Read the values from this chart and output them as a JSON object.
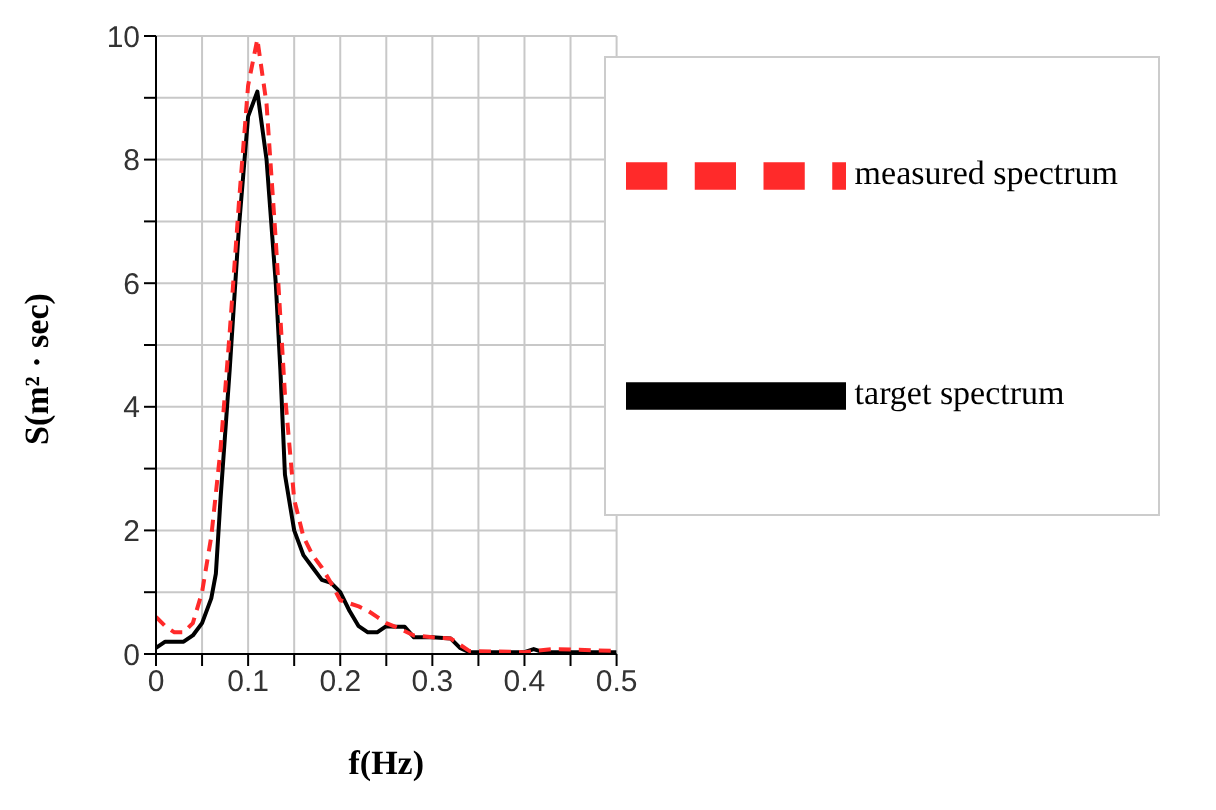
{
  "chart_data": {
    "type": "line",
    "xlabel": "f(Hz)",
    "ylabel": "S(m² · sec)",
    "xlim": [
      0,
      0.5
    ],
    "ylim": [
      0,
      10
    ],
    "xticks": [
      0,
      {
        "value": 0.05,
        "label": null
      },
      0.1,
      {
        "value": 0.15,
        "label": null
      },
      0.2,
      {
        "value": 0.25,
        "label": null
      },
      0.3,
      {
        "value": 0.35,
        "label": null
      },
      0.4,
      {
        "value": 0.45,
        "label": null
      },
      0.5
    ],
    "yticks": [
      0,
      {
        "value": 1,
        "label": null
      },
      2,
      {
        "value": 3,
        "label": null
      },
      4,
      {
        "value": 5,
        "label": null
      },
      6,
      {
        "value": 7,
        "label": null
      },
      8,
      {
        "value": 9,
        "label": null
      },
      10
    ],
    "grid": true,
    "legend": "top right",
    "marker": "none",
    "series": [
      {
        "name": "target spectrum",
        "color": "#000000",
        "line_style": "solid",
        "x": [
          0,
          0.01,
          0.03,
          0.04,
          0.05,
          0.06,
          0.065,
          0.07,
          0.08,
          0.09,
          0.1,
          0.11,
          0.12,
          0.13,
          0.135,
          0.14,
          0.15,
          0.16,
          0.17,
          0.18,
          0.19,
          0.2,
          0.21,
          0.22,
          0.23,
          0.24,
          0.25,
          0.26,
          0.27,
          0.28,
          0.3,
          0.32,
          0.33,
          0.34,
          0.4,
          0.41,
          0.42,
          0.5
        ],
        "values": [
          0.1,
          0.2,
          0.2,
          0.3,
          0.5,
          0.9,
          1.3,
          2.5,
          4.6,
          6.9,
          8.7,
          9.1,
          8.0,
          6.0,
          4.6,
          2.9,
          2.0,
          1.6,
          1.4,
          1.2,
          1.15,
          1.0,
          0.7,
          0.45,
          0.35,
          0.35,
          0.45,
          0.44,
          0.44,
          0.27,
          0.27,
          0.25,
          0.1,
          0.03,
          0.03,
          0.08,
          0.03,
          0.03
        ]
      },
      {
        "name": "measured spectrum",
        "color": "#ff2a2a",
        "line_style": "dashed",
        "x": [
          0,
          0.01,
          0.02,
          0.03,
          0.04,
          0.05,
          0.06,
          0.07,
          0.08,
          0.09,
          0.1,
          0.11,
          0.12,
          0.13,
          0.14,
          0.15,
          0.16,
          0.17,
          0.18,
          0.19,
          0.2,
          0.21,
          0.22,
          0.23,
          0.24,
          0.25,
          0.26,
          0.28,
          0.3,
          0.32,
          0.34,
          0.4,
          0.43,
          0.5
        ],
        "values": [
          0.6,
          0.45,
          0.35,
          0.35,
          0.5,
          1.0,
          1.9,
          3.3,
          5.2,
          7.3,
          9.2,
          9.95,
          8.9,
          6.7,
          4.2,
          2.5,
          1.9,
          1.6,
          1.4,
          1.15,
          0.87,
          0.82,
          0.77,
          0.7,
          0.6,
          0.5,
          0.44,
          0.3,
          0.27,
          0.25,
          0.05,
          0.03,
          0.08,
          0.05
        ]
      }
    ]
  }
}
